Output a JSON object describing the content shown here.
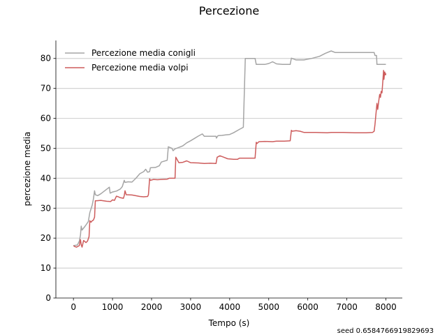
{
  "chart_data": {
    "type": "line",
    "title": "Percezione",
    "xlabel": "Tempo (s)",
    "ylabel": "percezione media",
    "xlim": [
      -450,
      8420
    ],
    "ylim": [
      0,
      86
    ],
    "xticks": [
      0,
      1000,
      2000,
      3000,
      4000,
      5000,
      6000,
      7000,
      8000
    ],
    "yticks": [
      0,
      10,
      20,
      30,
      40,
      50,
      60,
      70,
      80
    ],
    "grid": "horizontal",
    "legend_position": "top-left",
    "footnote": "seed 0.6584766919829693",
    "series": [
      {
        "name": "Percezione media conigli",
        "color": "#a5a5a5",
        "points": [
          [
            0,
            17.5
          ],
          [
            100,
            17.7
          ],
          [
            150,
            19
          ],
          [
            180,
            21
          ],
          [
            200,
            24
          ],
          [
            220,
            22.7
          ],
          [
            300,
            24
          ],
          [
            380,
            25.5
          ],
          [
            420,
            28.5
          ],
          [
            480,
            31
          ],
          [
            510,
            33
          ],
          [
            540,
            35.8
          ],
          [
            560,
            34.5
          ],
          [
            620,
            34.2
          ],
          [
            700,
            34.8
          ],
          [
            850,
            36.3
          ],
          [
            920,
            37
          ],
          [
            940,
            35
          ],
          [
            1000,
            35.4
          ],
          [
            1100,
            35.7
          ],
          [
            1200,
            36.4
          ],
          [
            1250,
            37.2
          ],
          [
            1300,
            39.3
          ],
          [
            1320,
            38.6
          ],
          [
            1400,
            38.8
          ],
          [
            1500,
            38.7
          ],
          [
            1600,
            40
          ],
          [
            1700,
            41.5
          ],
          [
            1800,
            42.2
          ],
          [
            1850,
            43
          ],
          [
            1900,
            42
          ],
          [
            1950,
            42.2
          ],
          [
            1970,
            43.5
          ],
          [
            2100,
            43.6
          ],
          [
            2200,
            44.2
          ],
          [
            2250,
            45.4
          ],
          [
            2300,
            45.6
          ],
          [
            2400,
            46
          ],
          [
            2430,
            50.5
          ],
          [
            2480,
            50.2
          ],
          [
            2520,
            50
          ],
          [
            2550,
            49.2
          ],
          [
            2600,
            49.8
          ],
          [
            2700,
            50.3
          ],
          [
            2800,
            50.8
          ],
          [
            2900,
            51.8
          ],
          [
            3000,
            52.5
          ],
          [
            3100,
            53.3
          ],
          [
            3200,
            54.1
          ],
          [
            3300,
            54.8
          ],
          [
            3350,
            54
          ],
          [
            3650,
            54
          ],
          [
            3660,
            53.4
          ],
          [
            3700,
            54.2
          ],
          [
            3800,
            54.3
          ],
          [
            3900,
            54.5
          ],
          [
            4000,
            54.6
          ],
          [
            4100,
            55.2
          ],
          [
            4250,
            56.3
          ],
          [
            4350,
            57
          ],
          [
            4400,
            80
          ],
          [
            4650,
            80
          ],
          [
            4680,
            78
          ],
          [
            4800,
            78
          ],
          [
            4900,
            78
          ],
          [
            5000,
            78.3
          ],
          [
            5100,
            78.9
          ],
          [
            5200,
            78.2
          ],
          [
            5350,
            78
          ],
          [
            5550,
            78
          ],
          [
            5580,
            80.1
          ],
          [
            5700,
            79.5
          ],
          [
            5900,
            79.5
          ],
          [
            6100,
            80
          ],
          [
            6300,
            80.7
          ],
          [
            6450,
            81.7
          ],
          [
            6600,
            82.5
          ],
          [
            6700,
            82
          ],
          [
            7000,
            82
          ],
          [
            7700,
            82
          ],
          [
            7720,
            81
          ],
          [
            7760,
            81
          ],
          [
            7770,
            78
          ],
          [
            8000,
            78
          ]
        ]
      },
      {
        "name": "Percezione media volpi",
        "color": "#cd5c5c",
        "points": [
          [
            0,
            17.5
          ],
          [
            30,
            17.2
          ],
          [
            80,
            17
          ],
          [
            150,
            17.5
          ],
          [
            180,
            19.5
          ],
          [
            200,
            17.8
          ],
          [
            220,
            17
          ],
          [
            260,
            19.2
          ],
          [
            320,
            18.5
          ],
          [
            360,
            19
          ],
          [
            400,
            20.5
          ],
          [
            420,
            25.8
          ],
          [
            450,
            25.3
          ],
          [
            480,
            25.8
          ],
          [
            510,
            26
          ],
          [
            540,
            27
          ],
          [
            560,
            32.5
          ],
          [
            600,
            32.5
          ],
          [
            700,
            32.6
          ],
          [
            850,
            32.3
          ],
          [
            950,
            32.2
          ],
          [
            1000,
            32.8
          ],
          [
            1050,
            32.6
          ],
          [
            1100,
            34
          ],
          [
            1150,
            33.8
          ],
          [
            1200,
            33.5
          ],
          [
            1280,
            33.3
          ],
          [
            1300,
            34.2
          ],
          [
            1320,
            35.8
          ],
          [
            1350,
            34.5
          ],
          [
            1500,
            34.4
          ],
          [
            1700,
            33.9
          ],
          [
            1800,
            33.8
          ],
          [
            1900,
            33.9
          ],
          [
            1920,
            34.5
          ],
          [
            1950,
            39.8
          ],
          [
            1970,
            39.3
          ],
          [
            2050,
            39.6
          ],
          [
            2150,
            39.5
          ],
          [
            2250,
            39.6
          ],
          [
            2400,
            39.7
          ],
          [
            2450,
            40
          ],
          [
            2600,
            40
          ],
          [
            2620,
            47
          ],
          [
            2700,
            45.2
          ],
          [
            2800,
            45.3
          ],
          [
            2900,
            45.8
          ],
          [
            3000,
            45.2
          ],
          [
            3200,
            45.1
          ],
          [
            3350,
            44.9
          ],
          [
            3500,
            45
          ],
          [
            3650,
            44.9
          ],
          [
            3680,
            47
          ],
          [
            3750,
            47.5
          ],
          [
            3850,
            47
          ],
          [
            3950,
            46.5
          ],
          [
            4100,
            46.3
          ],
          [
            4200,
            46.3
          ],
          [
            4250,
            46.7
          ],
          [
            4400,
            46.7
          ],
          [
            4650,
            46.7
          ],
          [
            4680,
            52
          ],
          [
            4700,
            51.6
          ],
          [
            4750,
            52.2
          ],
          [
            4900,
            52.3
          ],
          [
            5100,
            52.2
          ],
          [
            5200,
            52.4
          ],
          [
            5400,
            52.4
          ],
          [
            5550,
            52.5
          ],
          [
            5580,
            56
          ],
          [
            5600,
            55.7
          ],
          [
            5700,
            55.9
          ],
          [
            5800,
            55.7
          ],
          [
            5900,
            55.3
          ],
          [
            6200,
            55.3
          ],
          [
            6500,
            55.2
          ],
          [
            6600,
            55.3
          ],
          [
            6900,
            55.3
          ],
          [
            7200,
            55.2
          ],
          [
            7500,
            55.2
          ],
          [
            7660,
            55.3
          ],
          [
            7700,
            55.7
          ],
          [
            7720,
            58
          ],
          [
            7750,
            62
          ],
          [
            7770,
            65
          ],
          [
            7790,
            63
          ],
          [
            7820,
            66
          ],
          [
            7840,
            68
          ],
          [
            7860,
            67
          ],
          [
            7880,
            69
          ],
          [
            7900,
            68.5
          ],
          [
            7920,
            72
          ],
          [
            7940,
            76
          ],
          [
            7950,
            73
          ],
          [
            7970,
            75.5
          ],
          [
            7990,
            74.5
          ],
          [
            8000,
            75
          ]
        ]
      }
    ]
  }
}
